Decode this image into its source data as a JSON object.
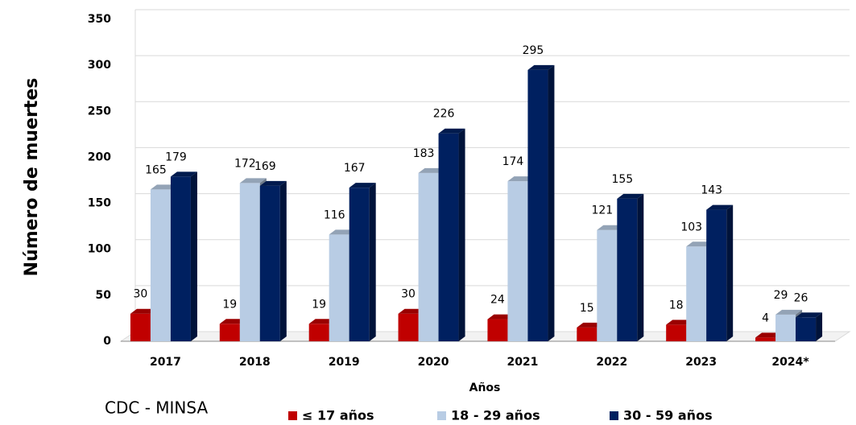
{
  "chart_data": {
    "type": "bar3d",
    "y_label": "Número de muertes",
    "x_label": "Años",
    "source": "CDC -  MINSA",
    "categories": [
      "2017",
      "2018",
      "2019",
      "2020",
      "2021",
      "2022",
      "2023",
      "2024*"
    ],
    "series": [
      {
        "name": "≤ 17 años",
        "color": "#c00000",
        "values": [
          30,
          19,
          19,
          30,
          24,
          15,
          18,
          4
        ]
      },
      {
        "name": "18 - 29 años",
        "color": "#b8cce4",
        "values": [
          165,
          172,
          116,
          183,
          174,
          121,
          103,
          29
        ]
      },
      {
        "name": "30 - 59 años",
        "color": "#002060",
        "values": [
          179,
          169,
          167,
          226,
          295,
          155,
          143,
          26
        ]
      }
    ],
    "ylim": [
      0,
      350
    ],
    "yticks": [
      0,
      50,
      100,
      150,
      200,
      250,
      300,
      350
    ],
    "grid": true
  }
}
